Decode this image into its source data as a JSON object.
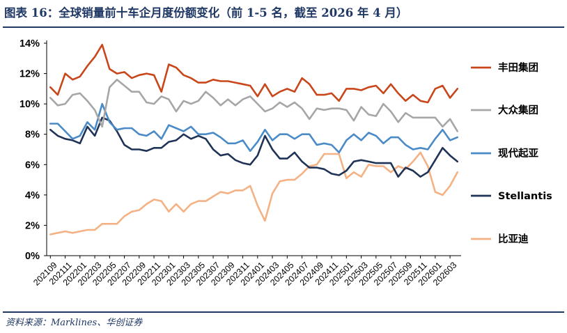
{
  "title": "图表 16：全球销量前十车企月度份额变化（前 1-5 名，截至 2026 年 4 月）",
  "source": "资料来源：Marklines、华创证券",
  "chart_data": {
    "type": "line",
    "x": [
      "202109",
      "202110",
      "202111",
      "202112",
      "202201",
      "202202",
      "202203",
      "202204",
      "202205",
      "202206",
      "202207",
      "202208",
      "202209",
      "202210",
      "202211",
      "202212",
      "202301",
      "202302",
      "202303",
      "202304",
      "202305",
      "202306",
      "202307",
      "202308",
      "202309",
      "202310",
      "202311",
      "202312",
      "202401",
      "202402",
      "202403",
      "202404",
      "202405",
      "202406",
      "202407",
      "202408",
      "202409",
      "202410",
      "202411",
      "202412",
      "202501",
      "202502",
      "202503",
      "202504",
      "202505",
      "202506",
      "202507",
      "202508",
      "202509",
      "202510",
      "202511",
      "202512",
      "202601",
      "202602",
      "202603",
      "202604"
    ],
    "x_tick_labels": [
      "202109",
      "202111",
      "202201",
      "202203",
      "202205",
      "202207",
      "202209",
      "202211",
      "202301",
      "202303",
      "202305",
      "202307",
      "202309",
      "202311",
      "202401",
      "202403",
      "202405",
      "202407",
      "202409",
      "202411",
      "202501",
      "202503",
      "202505",
      "202507",
      "202509",
      "202511",
      "202601",
      "202603"
    ],
    "y_ticks": [
      "0%",
      "2%",
      "4%",
      "6%",
      "8%",
      "10%",
      "12%",
      "14%"
    ],
    "ylim": [
      0,
      14
    ],
    "grid": false,
    "legend_position": "right",
    "series": [
      {
        "name": "丰田集团",
        "color": "#c9461b",
        "values": [
          11.1,
          10.6,
          12.0,
          11.6,
          11.8,
          12.5,
          13.1,
          13.9,
          12.3,
          12.0,
          12.1,
          11.7,
          11.9,
          12.0,
          11.9,
          10.8,
          12.6,
          12.4,
          11.9,
          11.7,
          11.4,
          11.4,
          11.6,
          11.5,
          11.5,
          11.4,
          11.3,
          11.2,
          10.5,
          11.3,
          10.5,
          10.8,
          11.0,
          10.8,
          11.7,
          11.3,
          10.6,
          10.6,
          10.7,
          10.2,
          11.0,
          11.0,
          10.9,
          11.1,
          11.2,
          10.7,
          11.3,
          10.7,
          10.2,
          10.6,
          10.2,
          10.1,
          11.0,
          11.2,
          10.4,
          11.0
        ]
      },
      {
        "name": "大众集团",
        "color": "#a6a6a6",
        "values": [
          10.4,
          9.9,
          10.0,
          10.6,
          10.7,
          10.2,
          9.6,
          8.5,
          11.1,
          11.6,
          11.2,
          10.8,
          10.8,
          10.1,
          10.0,
          10.5,
          10.3,
          9.5,
          10.2,
          10.0,
          10.2,
          10.8,
          10.4,
          9.9,
          10.3,
          9.9,
          10.3,
          10.5,
          10.0,
          9.5,
          9.7,
          10.1,
          9.8,
          10.1,
          9.7,
          9.0,
          9.7,
          9.6,
          9.7,
          9.7,
          9.6,
          8.9,
          9.8,
          9.3,
          9.2,
          10.0,
          9.5,
          8.8,
          9.4,
          9.1,
          9.1,
          9.1,
          9.1,
          8.5,
          9.0,
          8.2
        ]
      },
      {
        "name": "现代起亚",
        "color": "#4a8ac7",
        "values": [
          8.7,
          8.7,
          8.2,
          7.7,
          7.9,
          8.8,
          8.3,
          10.0,
          8.8,
          8.3,
          8.4,
          8.4,
          8.0,
          7.9,
          8.2,
          7.7,
          8.6,
          8.4,
          8.2,
          8.5,
          8.0,
          8.0,
          8.1,
          7.8,
          7.4,
          7.4,
          7.6,
          6.9,
          7.5,
          8.3,
          7.6,
          8.0,
          8.0,
          7.7,
          8.0,
          8.0,
          7.3,
          7.4,
          7.3,
          6.8,
          7.6,
          8.0,
          7.6,
          8.1,
          7.9,
          7.4,
          7.8,
          7.8,
          7.3,
          7.0,
          7.1,
          7.0,
          7.7,
          8.3,
          7.6,
          7.8
        ]
      },
      {
        "name": "Stellantis",
        "color": "#1f3356",
        "values": [
          8.3,
          7.9,
          7.7,
          7.6,
          7.4,
          8.5,
          7.9,
          9.1,
          8.9,
          8.2,
          7.3,
          7.0,
          7.0,
          6.9,
          7.1,
          7.1,
          7.5,
          7.6,
          8.0,
          7.7,
          7.9,
          7.7,
          7.0,
          6.6,
          6.7,
          6.3,
          6.1,
          6.0,
          6.6,
          7.9,
          7.0,
          6.4,
          6.4,
          6.8,
          6.2,
          5.8,
          5.8,
          5.7,
          5.4,
          5.3,
          5.6,
          6.2,
          6.3,
          6.2,
          6.1,
          6.1,
          6.1,
          5.2,
          5.8,
          5.6,
          5.2,
          5.5,
          6.3,
          7.1,
          6.6,
          6.2
        ]
      },
      {
        "name": "比亚迪",
        "color": "#f4b183",
        "values": [
          1.4,
          1.5,
          1.6,
          1.5,
          1.6,
          1.7,
          1.7,
          2.1,
          2.1,
          2.1,
          2.6,
          2.9,
          3.0,
          3.4,
          3.7,
          3.6,
          2.9,
          3.4,
          2.9,
          3.4,
          3.6,
          3.6,
          3.9,
          4.2,
          4.1,
          4.3,
          4.3,
          4.6,
          3.3,
          2.3,
          4.1,
          4.9,
          5.0,
          5.0,
          5.4,
          5.9,
          6.0,
          6.7,
          6.7,
          6.7,
          5.1,
          5.5,
          5.2,
          6.0,
          5.9,
          5.9,
          5.5,
          5.9,
          5.7,
          6.2,
          6.8,
          5.9,
          4.2,
          4.0,
          4.6,
          5.5
        ]
      }
    ]
  }
}
